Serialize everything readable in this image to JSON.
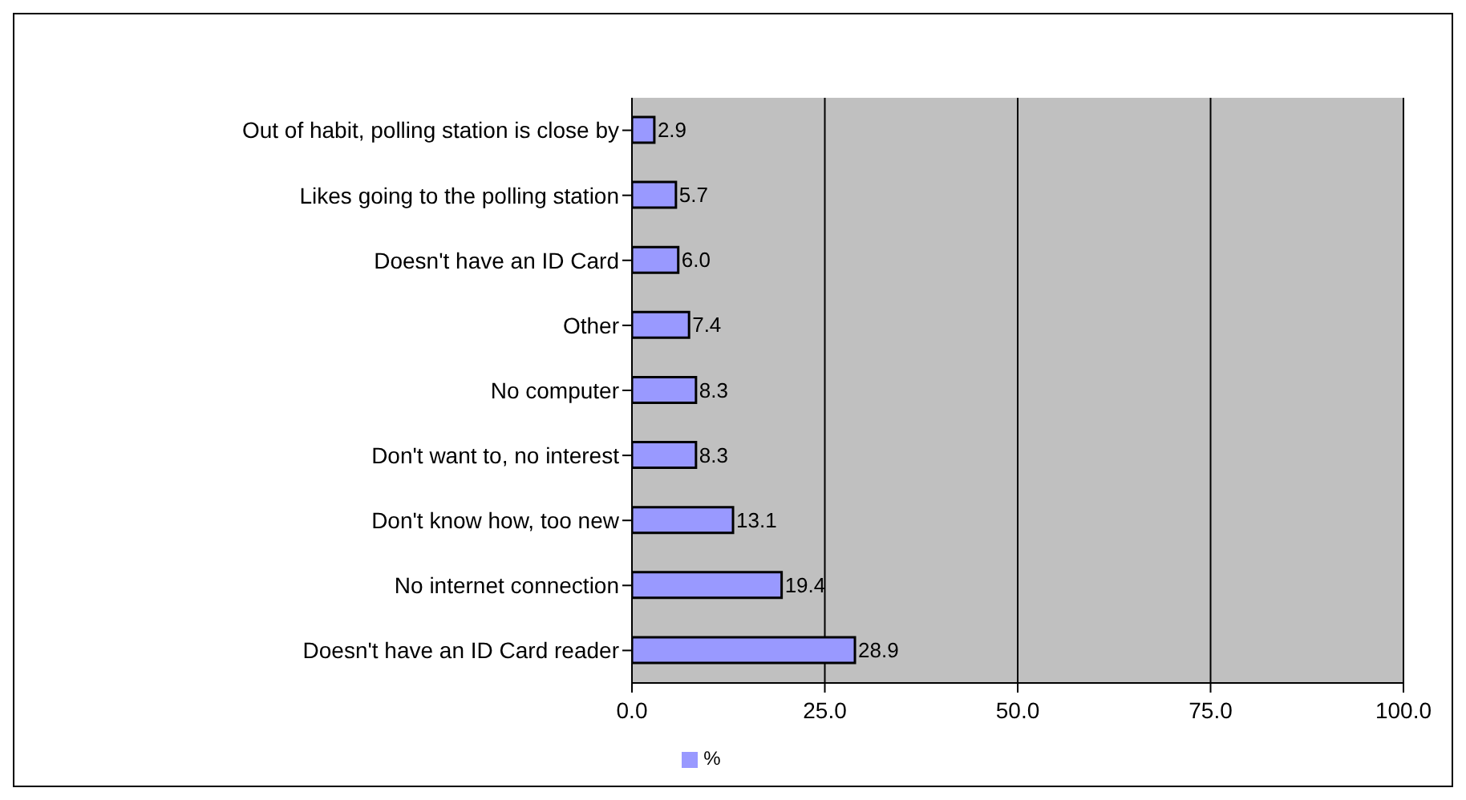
{
  "chart_data": {
    "type": "bar",
    "orientation": "horizontal",
    "categories": [
      "Out of habit, polling station is close by",
      "Likes going to the polling station",
      "Doesn't have an ID Card",
      "Other",
      "No computer",
      "Don't want to, no interest",
      "Don't know how, too new",
      "No internet connection",
      "Doesn't have an ID Card reader"
    ],
    "series": [
      {
        "name": "%",
        "color": "#9999ff",
        "values": [
          2.9,
          5.7,
          6.0,
          7.4,
          8.3,
          8.3,
          13.1,
          19.4,
          28.9
        ],
        "value_labels": [
          "2.9",
          "5.7",
          "6.0",
          "7.4",
          "8.3",
          "8.3",
          "13.1",
          "19.4",
          "28.9"
        ]
      }
    ],
    "xlim": [
      0,
      100
    ],
    "xticks": [
      {
        "value": 0,
        "label": "0.0"
      },
      {
        "value": 25,
        "label": "25.0"
      },
      {
        "value": 50,
        "label": "50.0"
      },
      {
        "value": 75,
        "label": "75.0"
      },
      {
        "value": 100,
        "label": "100.0"
      }
    ],
    "grid": "x",
    "legend": "bottom"
  }
}
